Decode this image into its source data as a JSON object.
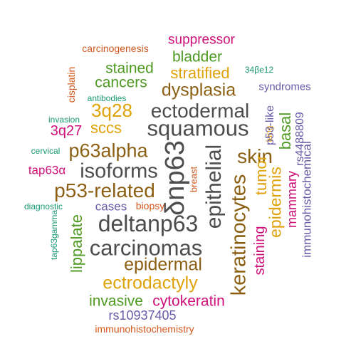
{
  "colors": {
    "gray": "#4d4d4d",
    "brown": "#8c6014",
    "gold": "#e0a20a",
    "green": "#4f9a22",
    "magenta": "#d0107a",
    "purple": "#6a5aa8",
    "orange": "#d2571c",
    "teal": "#1a9a74"
  },
  "words": [
    {
      "text": "suppressor",
      "color": "magenta"
    },
    {
      "text": "carcinogenesis",
      "color": "orange"
    },
    {
      "text": "bladder",
      "color": "green"
    },
    {
      "text": "34βe12",
      "color": "teal"
    },
    {
      "text": "stained",
      "color": "green"
    },
    {
      "text": "stratified",
      "color": "gold"
    },
    {
      "text": "cancers",
      "color": "green"
    },
    {
      "text": "cisplatin",
      "color": "orange"
    },
    {
      "text": "dysplasia",
      "color": "brown"
    },
    {
      "text": "syndromes",
      "color": "purple"
    },
    {
      "text": "antibodies",
      "color": "teal"
    },
    {
      "text": "3q28",
      "color": "gold"
    },
    {
      "text": "ectodermal",
      "color": "gray"
    },
    {
      "text": "invasion",
      "color": "teal"
    },
    {
      "text": "sccs",
      "color": "gold"
    },
    {
      "text": "squamous",
      "color": "gray"
    },
    {
      "text": "3q27",
      "color": "magenta"
    },
    {
      "text": "lung",
      "color": "gold"
    },
    {
      "text": "p53-like",
      "color": "purple"
    },
    {
      "text": "rs4488809",
      "color": "purple"
    },
    {
      "text": "cervical",
      "color": "teal"
    },
    {
      "text": "p63alpha",
      "color": "brown"
    },
    {
      "text": "δnp63",
      "color": "gray"
    },
    {
      "text": "basal",
      "color": "green"
    },
    {
      "text": "skin",
      "color": "brown"
    },
    {
      "text": "tap63α",
      "color": "magenta"
    },
    {
      "text": "isoforms",
      "color": "gray"
    },
    {
      "text": "breast",
      "color": "orange"
    },
    {
      "text": "epithelial",
      "color": "gray"
    },
    {
      "text": "p53-related",
      "color": "brown"
    },
    {
      "text": "keratinocytes",
      "color": "brown"
    },
    {
      "text": "tumor",
      "color": "gold"
    },
    {
      "text": "epidermis",
      "color": "gold"
    },
    {
      "text": "mammary",
      "color": "magenta"
    },
    {
      "text": "immunohistochemical",
      "color": "purple"
    },
    {
      "text": "diagnostic",
      "color": "teal"
    },
    {
      "text": "cases",
      "color": "purple"
    },
    {
      "text": "biopsy",
      "color": "orange"
    },
    {
      "text": "lippalate",
      "color": "green"
    },
    {
      "text": "deltanp63",
      "color": "gray"
    },
    {
      "text": "staining",
      "color": "magenta"
    },
    {
      "text": "tap63gamma",
      "color": "teal"
    },
    {
      "text": "carcinomas",
      "color": "gray"
    },
    {
      "text": "epidermal",
      "color": "brown"
    },
    {
      "text": "ectrodactyly",
      "color": "gold"
    },
    {
      "text": "invasive",
      "color": "green"
    },
    {
      "text": "cytokeratin",
      "color": "magenta"
    },
    {
      "text": "rs10937405",
      "color": "purple"
    },
    {
      "text": "immunohistochemistry",
      "color": "orange"
    }
  ]
}
